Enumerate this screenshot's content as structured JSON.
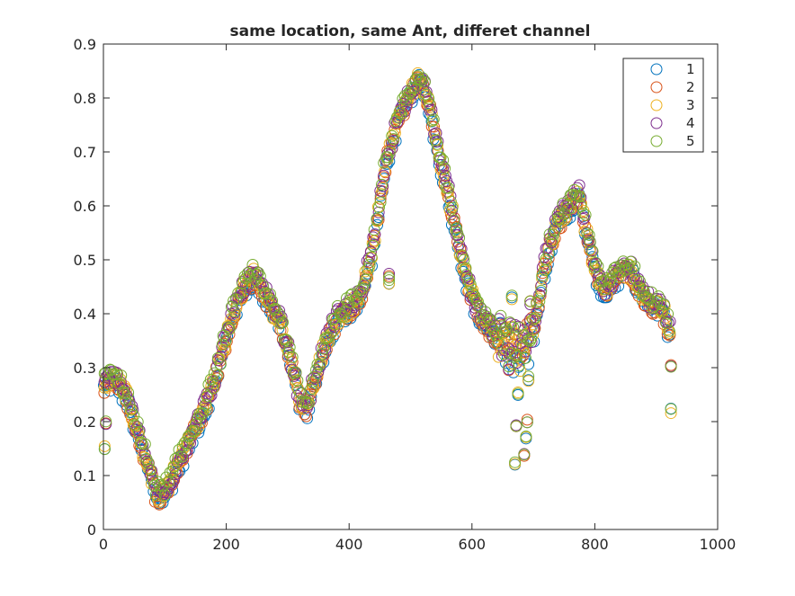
{
  "chart_data": {
    "type": "scatter",
    "title": "same location, same Ant, differet channel",
    "xlabel": "",
    "ylabel": "",
    "xlim": [
      0,
      1000
    ],
    "ylim": [
      0,
      0.9
    ],
    "xticks": [
      "0",
      "200",
      "400",
      "600",
      "800",
      "1000"
    ],
    "yticks": [
      "0",
      "0.1",
      "0.2",
      "0.3",
      "0.4",
      "0.5",
      "0.6",
      "0.7",
      "0.8",
      "0.9"
    ],
    "grid": false,
    "legend_position": "top-right",
    "marker": "open-circle",
    "x_range_of_samples": [
      1,
      924
    ],
    "trend_curve": [
      [
        0,
        0.27
      ],
      [
        20,
        0.28
      ],
      [
        40,
        0.24
      ],
      [
        60,
        0.16
      ],
      [
        75,
        0.11
      ],
      [
        85,
        0.07
      ],
      [
        95,
        0.06
      ],
      [
        110,
        0.09
      ],
      [
        130,
        0.14
      ],
      [
        150,
        0.19
      ],
      [
        170,
        0.24
      ],
      [
        190,
        0.31
      ],
      [
        210,
        0.4
      ],
      [
        230,
        0.45
      ],
      [
        245,
        0.47
      ],
      [
        255,
        0.45
      ],
      [
        270,
        0.42
      ],
      [
        290,
        0.38
      ],
      [
        305,
        0.31
      ],
      [
        320,
        0.24
      ],
      [
        330,
        0.22
      ],
      [
        345,
        0.28
      ],
      [
        360,
        0.34
      ],
      [
        380,
        0.39
      ],
      [
        400,
        0.41
      ],
      [
        420,
        0.43
      ],
      [
        440,
        0.53
      ],
      [
        460,
        0.68
      ],
      [
        480,
        0.76
      ],
      [
        500,
        0.81
      ],
      [
        515,
        0.84
      ],
      [
        530,
        0.79
      ],
      [
        545,
        0.7
      ],
      [
        560,
        0.63
      ],
      [
        575,
        0.55
      ],
      [
        590,
        0.47
      ],
      [
        610,
        0.4
      ],
      [
        630,
        0.37
      ],
      [
        650,
        0.35
      ],
      [
        665,
        0.34
      ],
      [
        680,
        0.33
      ],
      [
        700,
        0.37
      ],
      [
        720,
        0.5
      ],
      [
        740,
        0.57
      ],
      [
        760,
        0.6
      ],
      [
        775,
        0.62
      ],
      [
        785,
        0.56
      ],
      [
        800,
        0.48
      ],
      [
        815,
        0.44
      ],
      [
        830,
        0.46
      ],
      [
        845,
        0.48
      ],
      [
        860,
        0.48
      ],
      [
        875,
        0.44
      ],
      [
        890,
        0.42
      ],
      [
        910,
        0.41
      ],
      [
        924,
        0.36
      ]
    ],
    "outliers": [
      [
        2,
        0.15
      ],
      [
        4,
        0.2
      ],
      [
        465,
        0.46
      ],
      [
        465,
        0.47
      ],
      [
        670,
        0.12
      ],
      [
        672,
        0.19
      ],
      [
        675,
        0.25
      ],
      [
        685,
        0.14
      ],
      [
        688,
        0.17
      ],
      [
        690,
        0.2
      ],
      [
        692,
        0.28
      ],
      [
        660,
        0.3
      ],
      [
        665,
        0.43
      ],
      [
        695,
        0.42
      ],
      [
        924,
        0.22
      ],
      [
        924,
        0.3
      ]
    ],
    "series": [
      {
        "name": "1",
        "color": "#0072BD"
      },
      {
        "name": "2",
        "color": "#D95319"
      },
      {
        "name": "3",
        "color": "#EDB120"
      },
      {
        "name": "4",
        "color": "#7E2F8E"
      },
      {
        "name": "5",
        "color": "#77AC30"
      }
    ]
  }
}
